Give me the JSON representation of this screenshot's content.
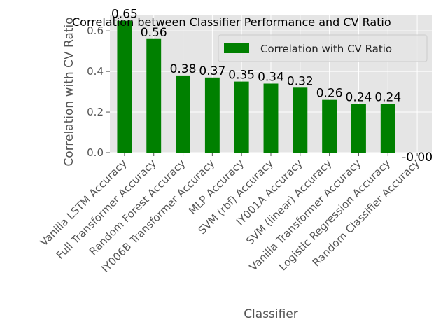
{
  "chart_data": {
    "type": "bar",
    "title": "Correlation between Classifier Performance and CV Ratio",
    "xlabel": "Classifier",
    "ylabel": "Correlation with CV Ratio",
    "categories": [
      "Vanilla LSTM Accuracy",
      "Full Transformer Accuracy",
      "Random Forest Accuracy",
      "IY006B Transformer Accuracy",
      "MLP Accuracy",
      "SVM (rbf) Accuracy",
      "IY001A Accuracy",
      "SVM (linear) Accuracy",
      "Vanilla Transformer Accuracy",
      "Logistic Regression Accuracy",
      "Random Classifier Accuracy"
    ],
    "series": [
      {
        "name": "Correlation with CV Ratio",
        "values": [
          0.65,
          0.56,
          0.38,
          0.37,
          0.35,
          0.34,
          0.32,
          0.26,
          0.24,
          0.24,
          -0.0
        ],
        "labels": [
          "0.65",
          "0.56",
          "0.38",
          "0.37",
          "0.35",
          "0.34",
          "0.32",
          "0.26",
          "0.24",
          "0.24",
          "-0.00"
        ],
        "color": "#008000"
      }
    ],
    "ylim": [
      0,
      0.68
    ],
    "yticks": [
      0.0,
      0.2,
      0.4,
      0.6
    ],
    "ytick_labels": [
      "0.0",
      "0.2",
      "0.4",
      "0.6"
    ],
    "grid": true,
    "legend_position": "top-right",
    "background_color": "#e5e5e5",
    "grid_color": "#ffffff"
  }
}
